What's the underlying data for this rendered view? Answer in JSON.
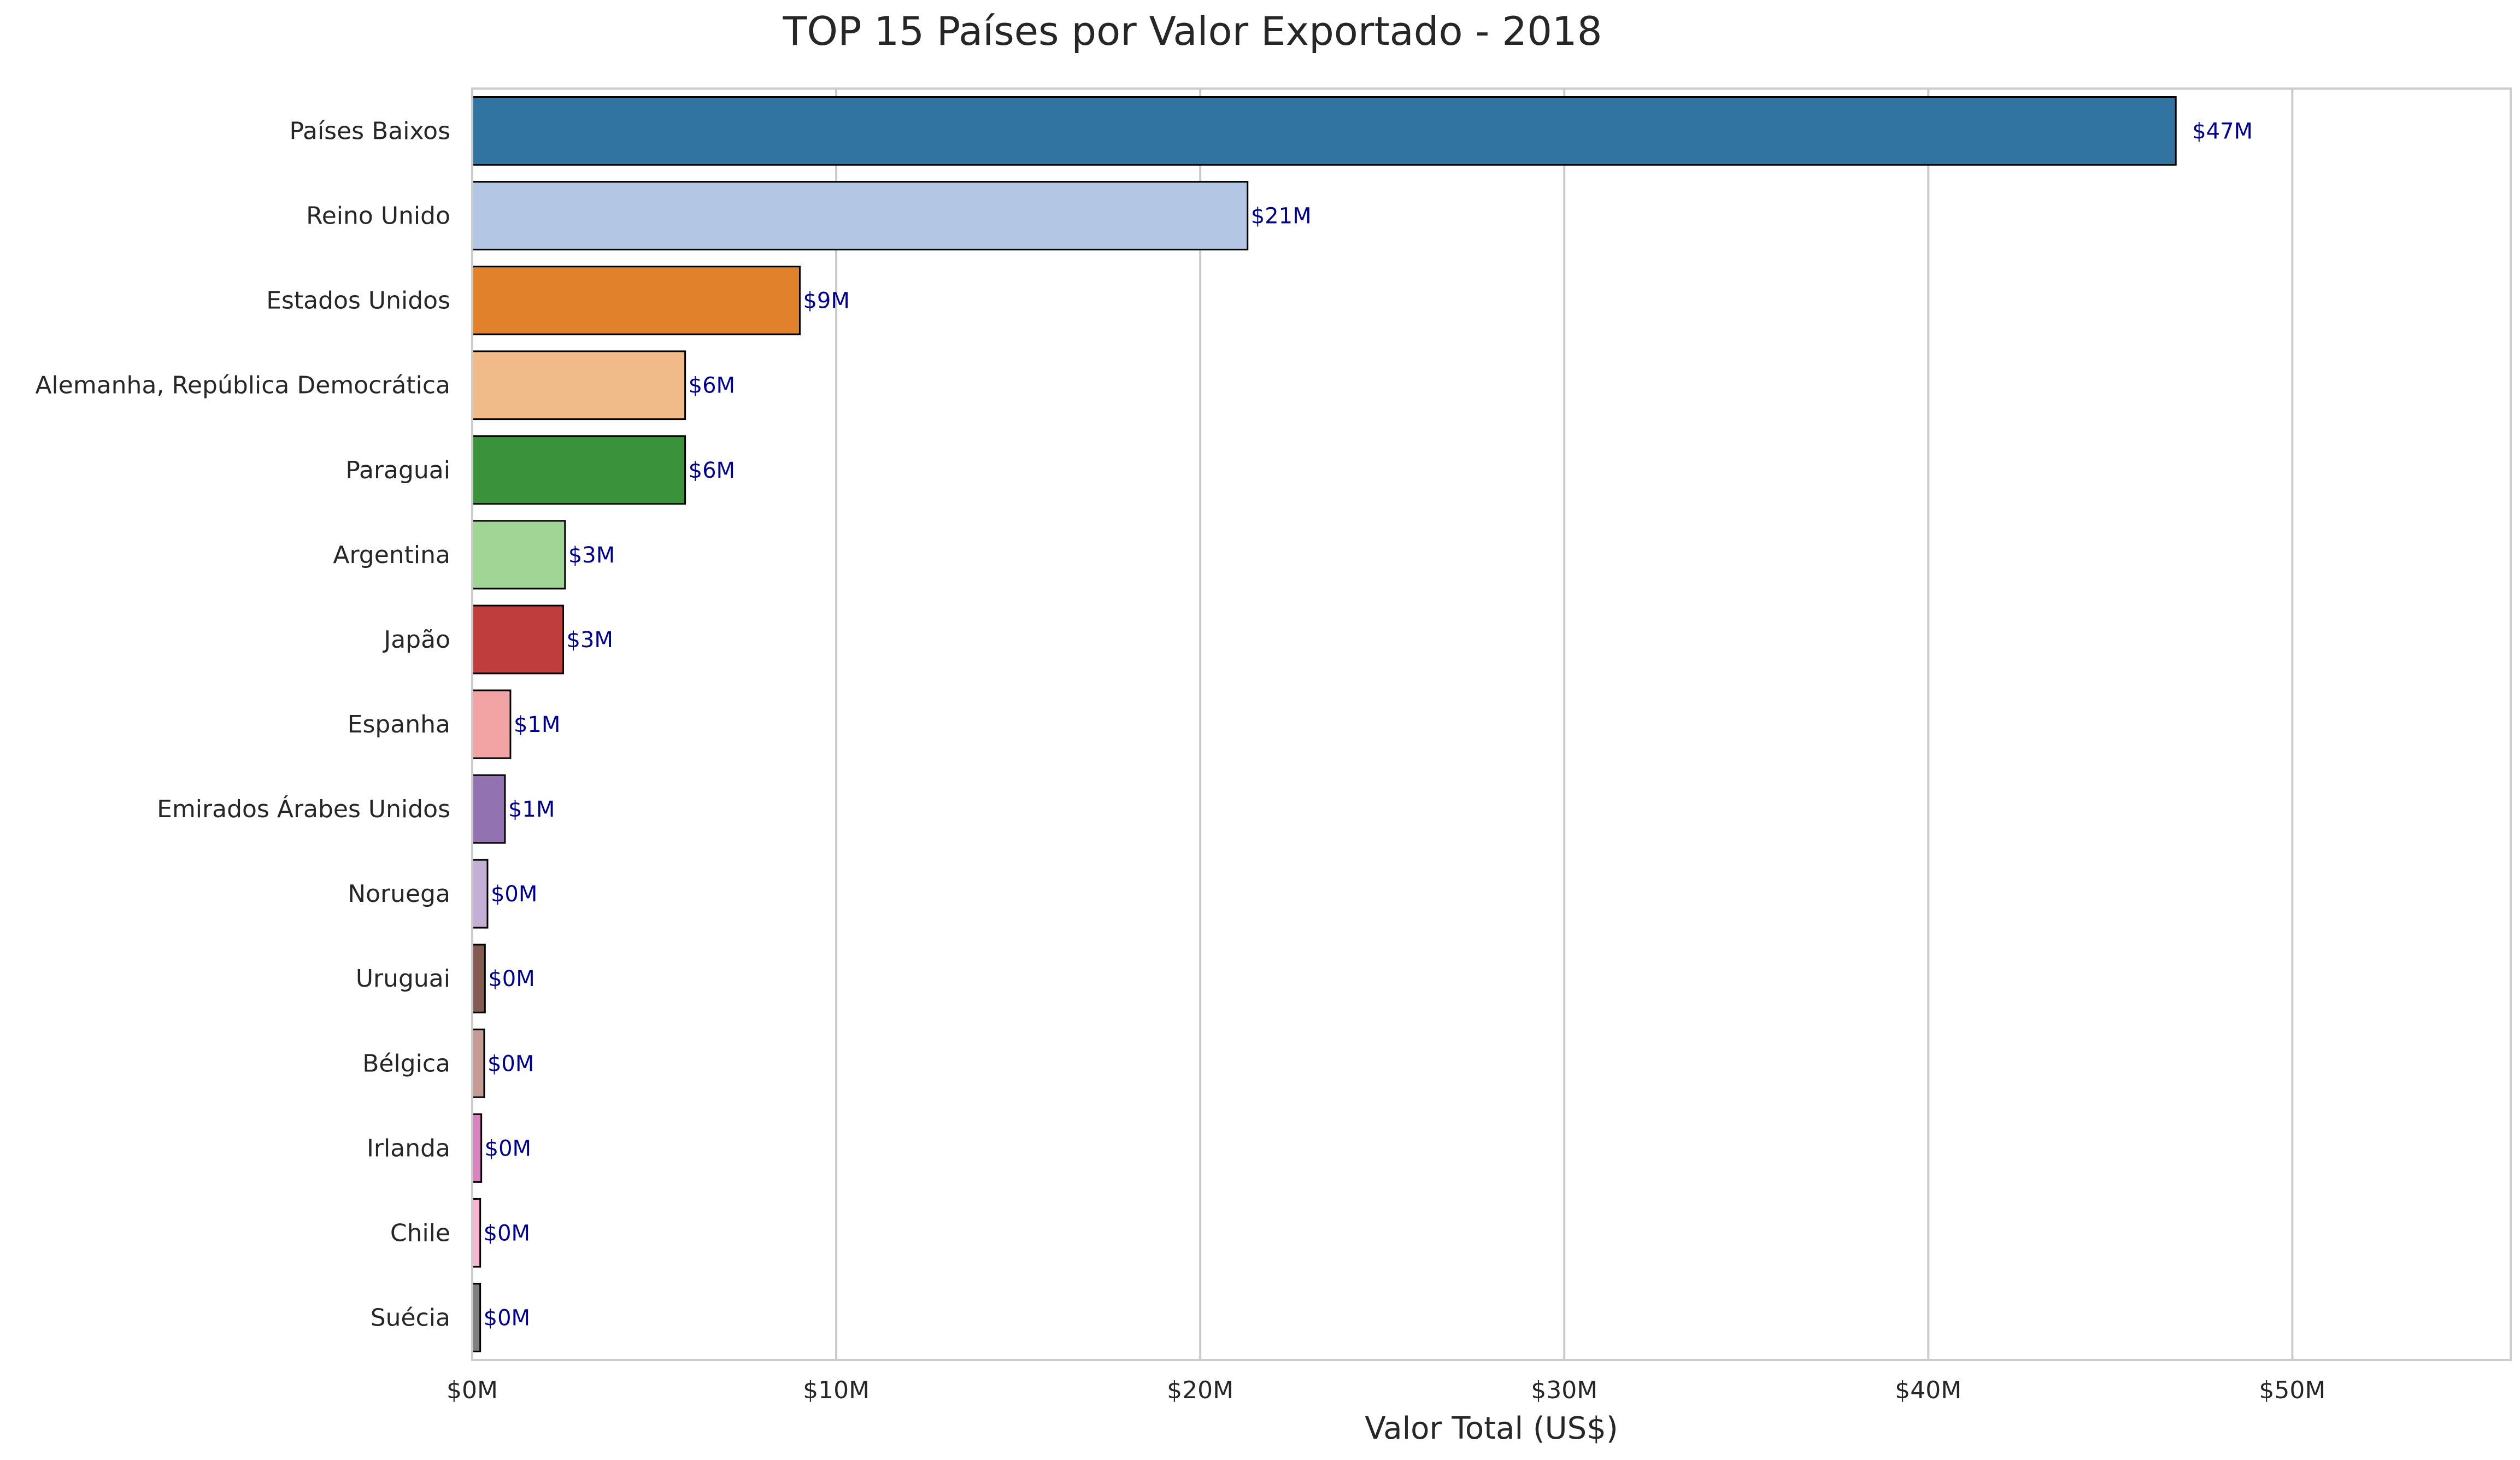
{
  "chart_data": {
    "type": "bar",
    "orientation": "horizontal",
    "title": "TOP 15 Países por Valor Exportado - 2018",
    "xlabel": "Valor Total (US$)",
    "ylabel": "",
    "xlim": [
      0,
      56
    ],
    "x_unit": "millions of US$",
    "grid": "x",
    "categories": [
      "Países Baixos",
      "Reino Unido",
      "Estados Unidos",
      "Alemanha, República Democrática",
      "Paraguai",
      "Argentina",
      "Japão",
      "Espanha",
      "Emirados Árabes Unidos",
      "Noruega",
      "Uruguai",
      "Bélgica",
      "Irlanda",
      "Chile",
      "Suécia"
    ],
    "values": [
      46.8,
      21.3,
      9.0,
      5.85,
      5.85,
      2.55,
      2.5,
      1.05,
      0.9,
      0.42,
      0.35,
      0.33,
      0.25,
      0.22,
      0.22
    ],
    "value_labels": [
      "$47M",
      "$21M",
      "$9M",
      "$6M",
      "$6M",
      "$3M",
      "$3M",
      "$1M",
      "$1M",
      "$0M",
      "$0M",
      "$0M",
      "$0M",
      "$0M",
      "$0M"
    ],
    "colors": [
      "#3274a1",
      "#b3c6e4",
      "#e1812c",
      "#f0bb88",
      "#3a923a",
      "#a0d596",
      "#c03d3e",
      "#f2a4a5",
      "#9372b2",
      "#c5b0d5",
      "#845b53",
      "#c49c94",
      "#d684bd",
      "#f7b6d2",
      "#7f7f7f"
    ],
    "xticks": [
      {
        "value": 0,
        "label": "$0M"
      },
      {
        "value": 10,
        "label": "$10M"
      },
      {
        "value": 20,
        "label": "$20M"
      },
      {
        "value": 30,
        "label": "$30M"
      },
      {
        "value": 40,
        "label": "$40M"
      },
      {
        "value": 50,
        "label": "$50M"
      }
    ]
  }
}
